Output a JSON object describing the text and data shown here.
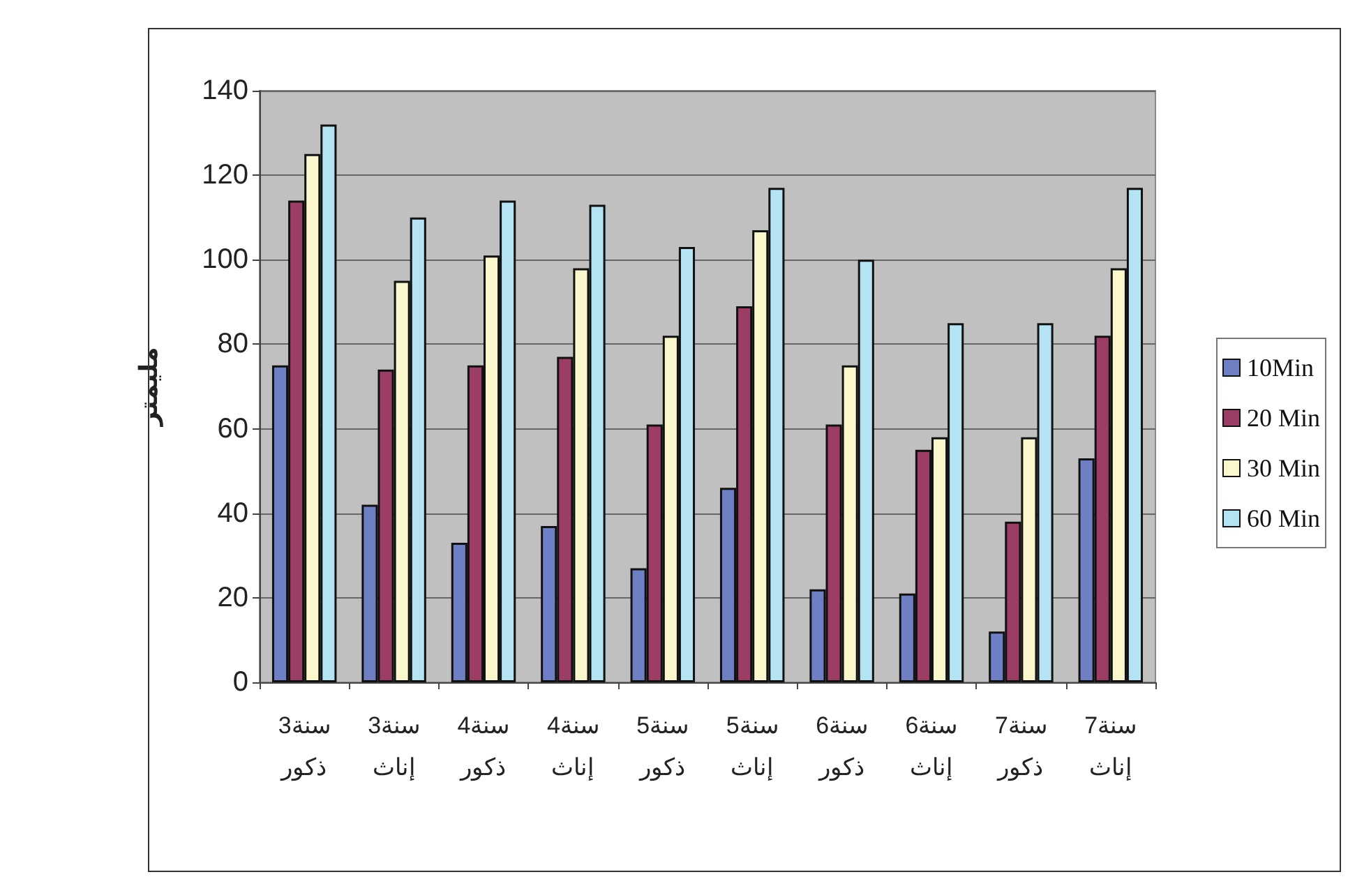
{
  "chart_data": {
    "type": "bar",
    "ylabel": "مليمتر",
    "categories": [
      "3سنة\nذكور",
      "3سنة\nإناث",
      "4سنة\nذكور",
      "4سنة\nإناث",
      "5سنة\nذكور",
      "5سنة\nإناث",
      "6سنة\nذكور",
      "6سنة\nإناث",
      "7سنة\nذكور",
      "7سنة\nإناث"
    ],
    "series": [
      {
        "name": "10Min",
        "color": "#6f7fc4",
        "values": [
          75,
          42,
          33,
          37,
          27,
          46,
          22,
          21,
          12,
          53
        ]
      },
      {
        "name": "20 Min",
        "color": "#9b3d64",
        "values": [
          114,
          74,
          75,
          77,
          61,
          89,
          61,
          55,
          38,
          82
        ]
      },
      {
        "name": "30 Min",
        "color": "#fbf7cc",
        "values": [
          125,
          95,
          101,
          98,
          82,
          107,
          75,
          58,
          58,
          98
        ]
      },
      {
        "name": "60 Min",
        "color": "#b4e4f4",
        "values": [
          132,
          110,
          114,
          113,
          103,
          117,
          100,
          85,
          85,
          117
        ]
      }
    ],
    "ylim": [
      0,
      140
    ],
    "yticks": [
      0,
      20,
      40,
      60,
      80,
      100,
      120,
      140
    ],
    "grid": "y",
    "legend": "right"
  }
}
